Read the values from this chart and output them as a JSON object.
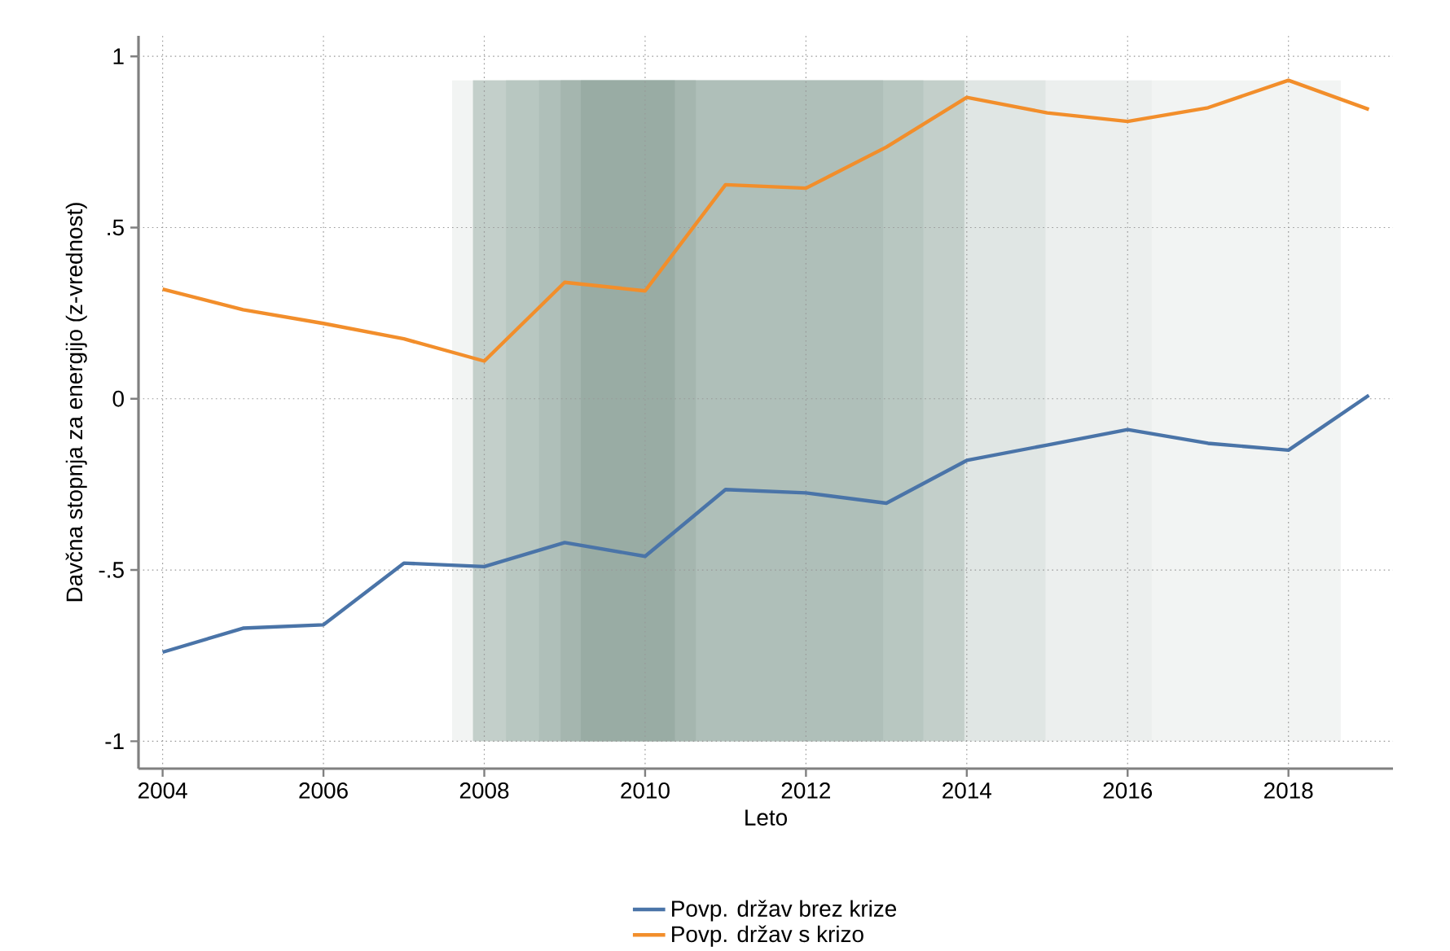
{
  "chart_data": {
    "type": "line",
    "xlabel": "Leto",
    "ylabel": "Davčna stopnja za energijo (z-vrednost)",
    "x": [
      2004,
      2005,
      2006,
      2007,
      2008,
      2009,
      2010,
      2011,
      2012,
      2013,
      2014,
      2015,
      2016,
      2017,
      2018,
      2019
    ],
    "series": [
      {
        "name": "Povp. držav brez krize",
        "color": "#4a74a8",
        "values": [
          -0.74,
          -0.67,
          -0.66,
          -0.48,
          -0.49,
          -0.42,
          -0.46,
          -0.265,
          -0.275,
          -0.305,
          -0.18,
          -0.135,
          -0.09,
          -0.13,
          -0.15,
          0.01
        ]
      },
      {
        "name": "Povp. držav s krizo",
        "color": "#f28e2b",
        "values": [
          0.32,
          0.26,
          0.22,
          0.175,
          0.11,
          0.34,
          0.315,
          0.625,
          0.615,
          0.735,
          0.88,
          0.835,
          0.81,
          0.85,
          0.93,
          0.845
        ]
      }
    ],
    "xlim": [
      2003.7,
      2019.3
    ],
    "ylim": [
      -1.08,
      1.06
    ],
    "xticks": [
      2004,
      2006,
      2008,
      2010,
      2012,
      2014,
      2016,
      2018
    ],
    "yticks": [
      {
        "value": -1,
        "label": "-1"
      },
      {
        "value": -0.5,
        "label": "-.5"
      },
      {
        "value": 0,
        "label": "0"
      },
      {
        "value": 0.5,
        "label": ".5"
      },
      {
        "value": 1,
        "label": "1"
      }
    ],
    "bands": [
      {
        "axis": "x",
        "from": 2007.6,
        "to": 2018.65,
        "color": "#f2f4f3"
      },
      {
        "axis": "x",
        "from": 2007.86,
        "to": 2016.3,
        "color": "#ecefee"
      },
      {
        "axis": "x",
        "from": 2007.86,
        "to": 2014.98,
        "color": "#e0e6e4"
      },
      {
        "axis": "x",
        "from": 2007.86,
        "to": 2013.97,
        "color": "#c3cfca"
      },
      {
        "axis": "x",
        "from": 2008.27,
        "to": 2013.46,
        "color": "#b8c7c1"
      },
      {
        "axis": "x",
        "from": 2008.68,
        "to": 2012.96,
        "color": "#afbfb9"
      },
      {
        "axis": "x",
        "from": 2008.95,
        "to": 2010.63,
        "color": "#a5b6af"
      },
      {
        "axis": "x",
        "from": 2009.2,
        "to": 2010.37,
        "color": "#99aca4"
      }
    ],
    "grid": true,
    "legend": "bottom",
    "marker": "none",
    "line_style": "solid"
  }
}
